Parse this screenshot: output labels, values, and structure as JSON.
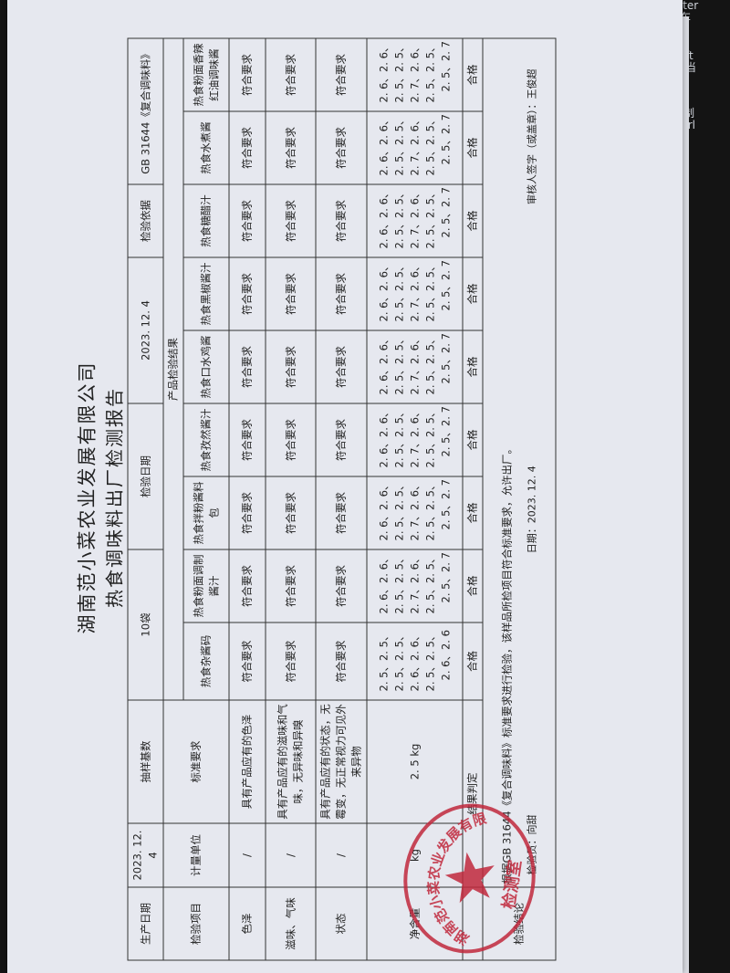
{
  "keyboard": {
    "enter": "Enter",
    "enter_cn": "回车",
    "shift_partial": "ft",
    "shift_cn": "当",
    "ctrl_cn": "制",
    "ctrl_partial": "trl"
  },
  "document": {
    "company": "湖南范小菜农业发展有限公司",
    "title": "热食调味料出厂检测报告",
    "header": {
      "production_date_label": "生产日期",
      "production_date": "2023. 12. 4",
      "sample_base_label": "抽样基数",
      "sample_base": "10袋",
      "inspection_date_label": "检验日期",
      "inspection_date": "2023. 12. 4",
      "basis_label": "检验依据",
      "basis": "GB 31644《复合调味料》"
    },
    "columns": {
      "item": "检验项目",
      "unit": "计量单位",
      "standard": "标准要求",
      "results": "产品检验结果"
    },
    "products": [
      "热食杂酱码",
      "热食粉面调制酱汁",
      "热食拌粉酱料包",
      "热食孜然酱汁",
      "热食口水鸡酱",
      "热食黑椒酱汁",
      "热食糖醋汁",
      "热食水煮酱",
      "热食粉面香辣红油调味酱"
    ],
    "rows": [
      {
        "item": "色泽",
        "unit": "/",
        "standard": "具有产品应有的色泽",
        "result": "符合要求"
      },
      {
        "item": "滋味、气味",
        "unit": "/",
        "standard": "具有产品应有的滋味和气味，无异味和异嗅",
        "result": "符合要求"
      },
      {
        "item": "状态",
        "unit": "/",
        "standard": "具有产品应有的状态，无霉变，无正常视力可见外来异物",
        "result": "符合要求"
      }
    ],
    "net": {
      "item": "净含量",
      "unit": "kg",
      "standard": "2. 5 kg",
      "values": [
        [
          "2. 5、2. 5、",
          "2. 5、2. 5、",
          "2. 6、2. 6、",
          "2. 5、2. 5、",
          "2. 6、2. 6"
        ],
        [
          "2. 6、2. 6、",
          "2. 5、2. 5、",
          "2. 7、2. 6、",
          "2. 5、2. 5、",
          "2. 5、2. 7"
        ],
        [
          "2. 6、2. 6、",
          "2. 5、2. 5、",
          "2. 7、2. 6、",
          "2. 5、2. 5、",
          "2. 5、2. 7"
        ],
        [
          "2. 6、2. 6、",
          "2. 5、2. 5、",
          "2. 7、2. 6、",
          "2. 5、2. 5、",
          "2. 5、2. 7"
        ],
        [
          "2. 6、2. 6、",
          "2. 5、2. 5、",
          "2. 7、2. 6、",
          "2. 5、2. 5、",
          "2. 5、2. 7"
        ],
        [
          "2. 6、2. 6、",
          "2. 5、2. 5、",
          "2. 7、2. 6、",
          "2. 5、2. 5、",
          "2. 5、2. 7"
        ],
        [
          "2. 6、2. 6、",
          "2. 5、2. 5、",
          "2. 7、2. 6、",
          "2. 5、2. 5、",
          "2. 5、2. 7"
        ],
        [
          "2. 6、2. 6、",
          "2. 5、2. 5、",
          "2. 7、2. 6、",
          "2. 5、2. 5、",
          "2. 5、2. 7"
        ],
        [
          "2. 6、2. 6、",
          "2. 5、2. 5、",
          "2. 7、2. 6、",
          "2. 5、2. 5、",
          "2. 5、2. 7"
        ]
      ]
    },
    "judgement_label": "结果判定",
    "judgement": "合格",
    "conclusion_label": "检验结论",
    "conclusion": "根据GB 31644《复合调味料》标准要求进行检验，该样品所检项目符合标准要求，允许出厂。",
    "inspector": "检验员：向甜",
    "date": "日期：2023. 12. 4",
    "reviewer": "审核人签字（或盖章）：王俊超",
    "stamp": {
      "ring": "湖南范小菜农业发展有限公司",
      "center": "检测室",
      "color": "#c0283c"
    }
  }
}
